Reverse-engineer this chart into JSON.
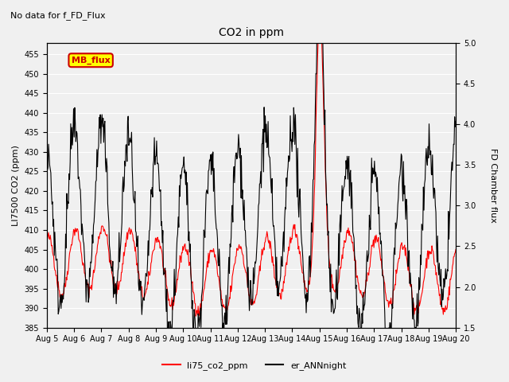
{
  "title": "CO2 in ppm",
  "top_label": "No data for f_FD_Flux",
  "legend_box_label": "MB_flux",
  "left_ylabel": "LI7500 CO2 (ppm)",
  "right_ylabel": "FD Chamber flux",
  "left_ylim": [
    385,
    458
  ],
  "right_ylim": [
    1.5,
    5.0
  ],
  "left_yticks": [
    385,
    390,
    395,
    400,
    405,
    410,
    415,
    420,
    425,
    430,
    435,
    440,
    445,
    450,
    455
  ],
  "right_yticks": [
    1.5,
    2.0,
    2.5,
    3.0,
    3.5,
    4.0,
    4.5,
    5.0
  ],
  "xlabel_tick_positions": [
    0,
    1,
    2,
    3,
    4,
    5,
    6,
    7,
    8,
    9,
    10,
    11,
    12,
    13,
    14,
    15
  ],
  "xlabel_ticks": [
    "Aug 5",
    "Aug 6",
    "Aug 7",
    "Aug 8",
    "Aug 9",
    "Aug 10",
    "Aug 11",
    "Aug 12",
    "Aug 13",
    "Aug 14",
    "Aug 15",
    "Aug 16",
    "Aug 17",
    "Aug 18",
    "Aug 19",
    "Aug 20"
  ],
  "line1_color": "#ff0000",
  "line2_color": "#000000",
  "line1_label": "li75_co2_ppm",
  "line2_label": "er_ANNnight",
  "background_color": "#f0f0f0",
  "legend_box_color": "#ffff00",
  "legend_box_edge_color": "#cc0000",
  "legend_box_text_color": "#cc0000",
  "grid_color": "#ffffff",
  "n_days": 15,
  "pts_per_day": 48
}
